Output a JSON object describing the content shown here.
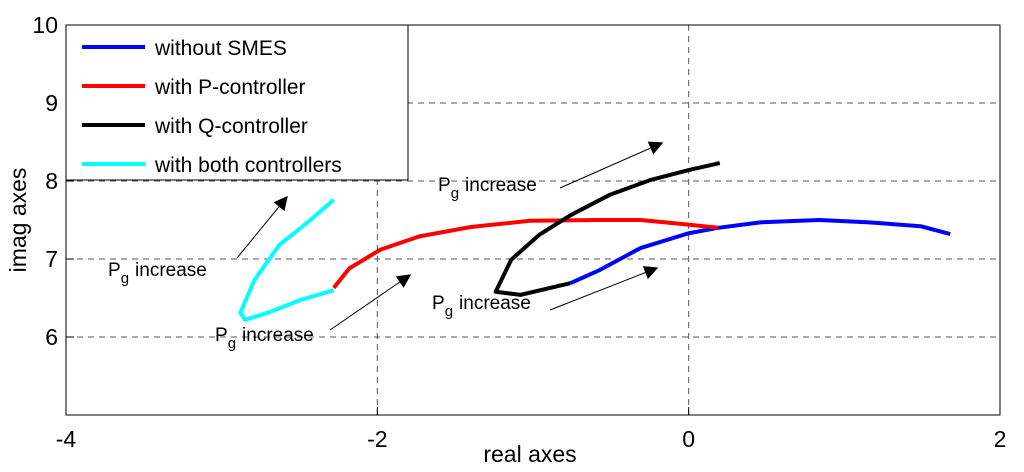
{
  "chart_data": {
    "type": "line",
    "xlabel": "real axes",
    "ylabel": "imag axes",
    "xlim": [
      -4,
      2
    ],
    "ylim": [
      5,
      10
    ],
    "xticks": [
      -4,
      -2,
      0,
      2
    ],
    "yticks": [
      6,
      7,
      8,
      9,
      10
    ],
    "grid": true,
    "legend": "upper left",
    "series": [
      {
        "name": "without SMES",
        "color": "#0000ff",
        "x": [
          -0.76,
          -0.57,
          -0.31,
          0.0,
          0.19,
          0.46,
          0.84,
          1.16,
          1.49,
          1.68
        ],
        "values": [
          6.69,
          6.86,
          7.14,
          7.33,
          7.4,
          7.47,
          7.5,
          7.47,
          7.42,
          7.32
        ]
      },
      {
        "name": "with P-controller",
        "color": "#ff0000",
        "x": [
          -2.28,
          -2.18,
          -1.98,
          -1.73,
          -1.4,
          -1.02,
          -0.57,
          -0.31,
          -0.05,
          0.19
        ],
        "values": [
          6.63,
          6.88,
          7.12,
          7.29,
          7.41,
          7.49,
          7.5,
          7.5,
          7.45,
          7.4
        ]
      },
      {
        "name": "with Q-controller",
        "color": "#000000",
        "x": [
          -0.76,
          -1.08,
          -1.24,
          -1.14,
          -0.96,
          -0.76,
          -0.51,
          -0.25,
          0.0,
          0.2
        ],
        "values": [
          6.69,
          6.54,
          6.58,
          6.99,
          7.31,
          7.56,
          7.82,
          8.01,
          8.14,
          8.23
        ]
      },
      {
        "name": "with both controllers",
        "color": "#00ffff",
        "x": [
          -2.28,
          -2.5,
          -2.69,
          -2.85,
          -2.88,
          -2.79,
          -2.63,
          -2.43,
          -2.28
        ],
        "values": [
          6.6,
          6.47,
          6.32,
          6.22,
          6.31,
          6.73,
          7.18,
          7.5,
          7.76
        ]
      }
    ],
    "annotations": [
      {
        "main": "P",
        "sub": "g",
        "rest": "increase"
      },
      {
        "main": "P",
        "sub": "g",
        "rest": "increase"
      },
      {
        "main": "P",
        "sub": "g",
        "rest": "increase"
      },
      {
        "main": "P",
        "sub": "g",
        "rest": "increase"
      }
    ]
  }
}
